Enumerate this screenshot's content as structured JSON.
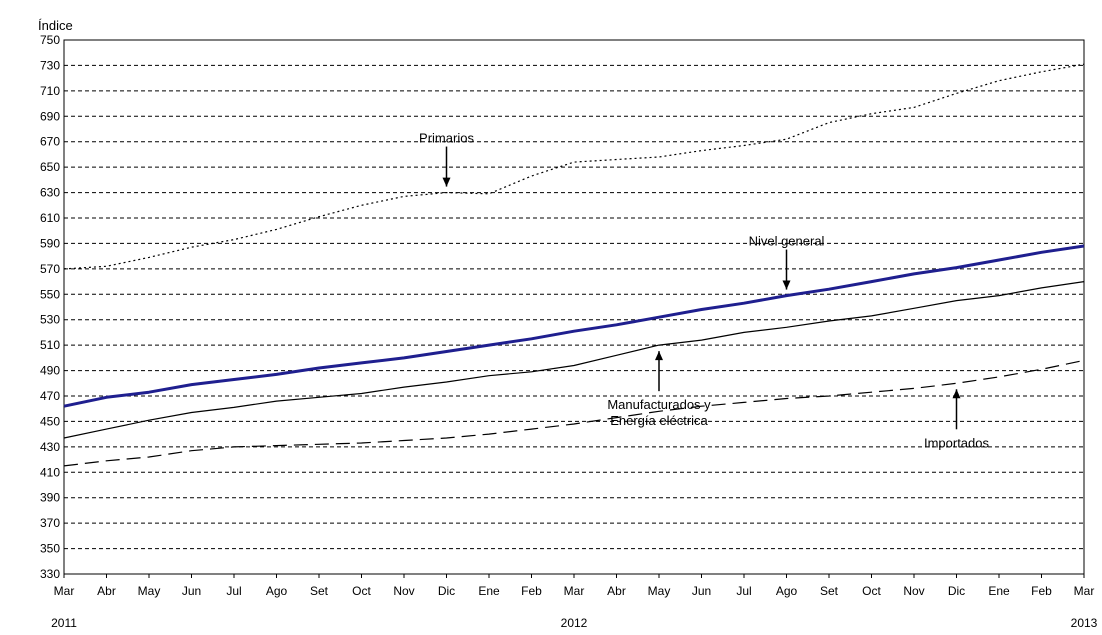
{
  "chart_data": {
    "type": "line",
    "ylabel": "Índice",
    "ylim": [
      330,
      750
    ],
    "yticks": [
      750,
      730,
      710,
      690,
      670,
      650,
      630,
      610,
      590,
      570,
      550,
      530,
      510,
      490,
      470,
      450,
      430,
      410,
      390,
      370,
      350,
      330
    ],
    "grid": "horizontal dashed",
    "categories": [
      "Mar",
      "Abr",
      "May",
      "Jun",
      "Jul",
      "Ago",
      "Set",
      "Oct",
      "Nov",
      "Dic",
      "Ene",
      "Feb",
      "Mar",
      "Abr",
      "May",
      "Jun",
      "Jul",
      "Ago",
      "Set",
      "Oct",
      "Nov",
      "Dic",
      "Ene",
      "Feb",
      "Mar"
    ],
    "year_labels": [
      {
        "text": "2011",
        "index": 0
      },
      {
        "text": "2012",
        "index": 12
      },
      {
        "text": "2013",
        "index": 24
      }
    ],
    "series": [
      {
        "name": "Primarios",
        "style": "dotted",
        "color": "#000000",
        "values": [
          570,
          572,
          579,
          587,
          593,
          601,
          611,
          620,
          627,
          630,
          629,
          643,
          654,
          656,
          658,
          663,
          667,
          672,
          685,
          692,
          697,
          708,
          718,
          725,
          731
        ]
      },
      {
        "name": "Nivel general",
        "style": "solid-thick",
        "color": "#1f1f8f",
        "values": [
          462,
          469,
          473,
          479,
          483,
          487,
          492,
          496,
          500,
          505,
          510,
          515,
          521,
          526,
          532,
          538,
          543,
          549,
          554,
          560,
          566,
          571,
          577,
          583,
          588
        ]
      },
      {
        "name": "Manufacturados y Energía eléctrica",
        "style": "solid-thin",
        "color": "#000000",
        "values": [
          437,
          444,
          451,
          457,
          461,
          466,
          469,
          472,
          477,
          481,
          486,
          489,
          494,
          502,
          510,
          514,
          520,
          524,
          529,
          533,
          539,
          545,
          549,
          555,
          560
        ]
      },
      {
        "name": "Importados",
        "style": "dashed",
        "color": "#000000",
        "values": [
          415,
          419,
          422,
          427,
          430,
          431,
          432,
          433,
          435,
          437,
          440,
          444,
          448,
          453,
          458,
          462,
          465,
          468,
          470,
          473,
          476,
          480,
          485,
          491,
          498
        ]
      }
    ],
    "annotations": [
      {
        "lines": [
          "Primarios"
        ],
        "series": 0,
        "index": 9,
        "arrow": "down"
      },
      {
        "lines": [
          "Nivel general"
        ],
        "series": 1,
        "index": 17,
        "arrow": "down"
      },
      {
        "lines": [
          "Manufacturados y",
          "Energía eléctrica"
        ],
        "series": 2,
        "index": 14,
        "arrow": "up"
      },
      {
        "lines": [
          "Importados"
        ],
        "series": 3,
        "index": 21,
        "arrow": "up"
      }
    ]
  }
}
